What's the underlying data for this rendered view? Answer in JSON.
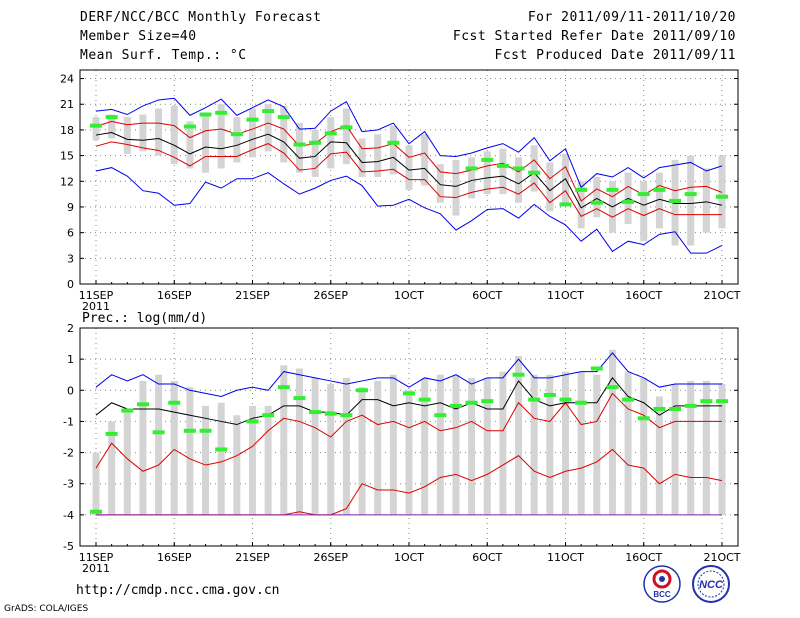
{
  "header": {
    "title": "DERF/NCC/BCC Monthly Forecast",
    "member_size": "Member Size=40",
    "variable": "Mean Surf. Temp.: °C",
    "period": "For 2011/09/11-2011/10/20",
    "refer_date": "Fcst Started Refer Date 2011/09/10",
    "produced_date": "Fcst Produced Date 2011/09/11"
  },
  "footer": {
    "url": "http://cmdp.ncc.cma.gov.cn",
    "credit": "GrADS: COLA/IGES",
    "logo_left": "BCC",
    "logo_right": "NCC"
  },
  "colors": {
    "max_line": "#0000ee",
    "min_line": "#0000ee",
    "mean_line": "#000000",
    "spread_line": "#dd0000",
    "box": "#d4d4d4",
    "marker": "#33ee33"
  },
  "chart_data": [
    {
      "type": "box",
      "title": "Mean Surf. Temp.: °C",
      "ylim": [
        0,
        25
      ],
      "yticks": [
        0,
        3,
        6,
        9,
        12,
        15,
        18,
        21,
        24
      ],
      "xlim": [
        0,
        40
      ],
      "xticks": [
        {
          "x": 0,
          "label": "11SEP",
          "sub": "2011"
        },
        {
          "x": 5,
          "label": "16SEP"
        },
        {
          "x": 10,
          "label": "21SEP"
        },
        {
          "x": 15,
          "label": "26SEP"
        },
        {
          "x": 20,
          "label": "1OCT"
        },
        {
          "x": 25,
          "label": "6OCT"
        },
        {
          "x": 30,
          "label": "11OCT"
        },
        {
          "x": 35,
          "label": "16OCT"
        },
        {
          "x": 40,
          "label": "21OCT"
        }
      ],
      "series": {
        "max": [
          20.2,
          20.4,
          19.8,
          20.8,
          21.5,
          21.7,
          19.7,
          20.6,
          21.6,
          19.7,
          20.6,
          21.5,
          20.7,
          18.1,
          18.2,
          20.2,
          21.3,
          17.8,
          18.0,
          18.8,
          16.4,
          17.8,
          15.0,
          14.9,
          15.3,
          15.9,
          16.4,
          15.4,
          17.1,
          14.4,
          15.8,
          11.3,
          12.9,
          12.5,
          13.6,
          12.4,
          13.6,
          13.9,
          14.2,
          13.2,
          13.8
        ],
        "spread_hi": [
          18.4,
          19.0,
          18.6,
          18.8,
          18.8,
          18.5,
          17.1,
          17.9,
          18.1,
          17.5,
          18.1,
          18.8,
          18.1,
          16.1,
          16.4,
          17.8,
          18.5,
          15.8,
          15.9,
          16.4,
          14.8,
          15.3,
          13.1,
          12.9,
          13.3,
          13.8,
          14.1,
          13.1,
          14.5,
          12.3,
          13.7,
          9.7,
          11.1,
          10.2,
          11.4,
          10.4,
          11.5,
          10.9,
          11.3,
          11.4,
          10.7
        ],
        "mean": [
          17.4,
          17.7,
          16.9,
          16.8,
          17.0,
          16.2,
          15.2,
          16.0,
          15.8,
          16.2,
          16.9,
          17.5,
          16.6,
          14.7,
          14.9,
          16.6,
          16.5,
          14.2,
          14.3,
          14.8,
          13.3,
          13.5,
          11.6,
          11.4,
          12.1,
          12.4,
          12.6,
          11.7,
          13.0,
          10.9,
          12.3,
          8.9,
          10.0,
          9.0,
          10.0,
          9.2,
          9.9,
          9.4,
          9.4,
          9.6,
          9.2
        ],
        "spread_lo": [
          16.1,
          16.6,
          16.3,
          15.9,
          15.6,
          14.8,
          13.8,
          14.9,
          14.9,
          14.9,
          15.7,
          16.4,
          15.3,
          13.3,
          13.5,
          15.2,
          15.4,
          13.1,
          13.2,
          13.4,
          12.2,
          12.2,
          10.2,
          10.1,
          10.7,
          11.1,
          11.3,
          10.5,
          11.8,
          9.5,
          10.9,
          7.9,
          8.8,
          7.8,
          8.8,
          8.0,
          8.8,
          8.1,
          8.1,
          8.1,
          8.1
        ],
        "min": [
          13.2,
          13.6,
          12.6,
          10.9,
          10.6,
          9.2,
          9.4,
          11.9,
          11.2,
          12.3,
          12.3,
          13.0,
          11.7,
          10.5,
          11.2,
          12.1,
          12.6,
          11.5,
          9.1,
          9.2,
          9.9,
          8.9,
          8.2,
          6.3,
          7.4,
          8.7,
          8.8,
          7.7,
          9.3,
          7.9,
          6.9,
          5.0,
          6.4,
          3.8,
          5.0,
          4.6,
          5.8,
          6.1,
          3.6,
          3.6,
          4.5
        ],
        "box_top": [
          19.5,
          19.8,
          19.5,
          19.8,
          20.5,
          20.8,
          19.0,
          20.0,
          21.0,
          19.5,
          20.5,
          21.0,
          20.8,
          18.8,
          18.0,
          19.5,
          20.5,
          17.0,
          17.5,
          18.5,
          16.2,
          17.5,
          14.0,
          14.5,
          14.8,
          15.5,
          15.8,
          14.8,
          16.2,
          14.2,
          15.2,
          12.0,
          12.5,
          12.0,
          13.0,
          12.0,
          13.0,
          14.5,
          15.0,
          13.5,
          15.0
        ],
        "box_bottom": [
          16.8,
          17.0,
          15.2,
          15.5,
          15.0,
          14.0,
          13.5,
          13.0,
          13.5,
          14.2,
          14.8,
          15.5,
          14.2,
          13.0,
          12.5,
          13.5,
          14.0,
          12.5,
          12.5,
          12.8,
          11.0,
          11.5,
          9.5,
          8.0,
          10.0,
          10.5,
          10.5,
          9.5,
          10.8,
          8.5,
          9.5,
          6.5,
          7.8,
          6.0,
          7.0,
          5.0,
          6.5,
          4.5,
          4.5,
          6.0,
          6.5
        ],
        "marker": [
          18.5,
          19.5,
          null,
          null,
          null,
          null,
          18.4,
          19.8,
          20.0,
          17.5,
          19.2,
          20.2,
          19.5,
          16.3,
          16.5,
          17.6,
          18.3,
          null,
          null,
          16.5,
          null,
          null,
          null,
          null,
          13.5,
          14.5,
          13.8,
          13.5,
          13.0,
          null,
          9.3,
          11.0,
          9.5,
          11.0,
          9.6,
          10.5,
          11.0,
          9.7,
          10.5,
          null,
          10.2
        ]
      }
    },
    {
      "type": "box",
      "title": "Prec.: log(mm/d)",
      "ylim": [
        -5,
        2
      ],
      "yticks": [
        -5,
        -4,
        -3,
        -2,
        -1,
        0,
        1,
        2
      ],
      "xlim": [
        0,
        40
      ],
      "xticks": [
        {
          "x": 0,
          "label": "11SEP",
          "sub": "2011"
        },
        {
          "x": 5,
          "label": "16SEP"
        },
        {
          "x": 10,
          "label": "21SEP"
        },
        {
          "x": 15,
          "label": "26SEP"
        },
        {
          "x": 20,
          "label": "1OCT"
        },
        {
          "x": 25,
          "label": "6OCT"
        },
        {
          "x": 30,
          "label": "11OCT"
        },
        {
          "x": 35,
          "label": "16OCT"
        },
        {
          "x": 40,
          "label": "21OCT"
        }
      ],
      "series": {
        "max": [
          0.1,
          0.5,
          0.3,
          0.5,
          0.2,
          0.2,
          0.0,
          -0.1,
          -0.2,
          0.0,
          0.1,
          0.0,
          0.6,
          0.5,
          0.4,
          0.3,
          0.2,
          0.3,
          0.4,
          0.4,
          0.1,
          0.4,
          0.3,
          0.5,
          0.2,
          0.4,
          0.4,
          1.0,
          0.4,
          0.4,
          0.5,
          0.6,
          0.6,
          1.2,
          0.6,
          0.4,
          0.1,
          0.2,
          0.2,
          0.2,
          0.2
        ],
        "spread_hi": [
          -2.5,
          -1.7,
          -2.2,
          -2.6,
          -2.4,
          -1.9,
          -2.2,
          -2.4,
          -2.3,
          -2.1,
          -1.8,
          -1.3,
          -0.9,
          -1.0,
          -1.2,
          -1.5,
          -1.0,
          -0.8,
          -1.1,
          -1.0,
          -1.2,
          -1.0,
          -1.3,
          -1.2,
          -1.0,
          -1.3,
          -1.3,
          -0.4,
          -0.9,
          -1.0,
          -0.4,
          -1.1,
          -1.0,
          -0.1,
          -0.6,
          -0.8,
          -1.2,
          -1.0,
          -1.0,
          -1.0,
          -1.0
        ],
        "mean": [
          -0.8,
          -0.4,
          -0.6,
          -0.6,
          -0.6,
          -0.7,
          -0.8,
          -0.9,
          -1.0,
          -1.1,
          -0.9,
          -0.8,
          -0.5,
          -0.5,
          -0.7,
          -0.7,
          -0.8,
          -0.3,
          -0.3,
          -0.5,
          -0.4,
          -0.5,
          -0.4,
          -0.6,
          -0.4,
          -0.6,
          -0.6,
          0.3,
          -0.3,
          -0.5,
          -0.4,
          -0.4,
          -0.4,
          0.4,
          -0.2,
          -0.4,
          -0.8,
          -0.5,
          -0.5,
          -0.5,
          -0.5
        ],
        "spread_lo": [
          -4.0,
          -4.0,
          -4.0,
          -4.0,
          -4.0,
          -4.0,
          -4.0,
          -4.0,
          -4.0,
          -4.0,
          -4.0,
          -4.0,
          -4.0,
          -3.9,
          -4.0,
          -4.0,
          -3.8,
          -3.0,
          -3.2,
          -3.2,
          -3.3,
          -3.1,
          -2.8,
          -2.7,
          -2.9,
          -2.7,
          -2.4,
          -2.1,
          -2.6,
          -2.8,
          -2.6,
          -2.5,
          -2.3,
          -1.9,
          -2.4,
          -2.5,
          -3.0,
          -2.7,
          -2.8,
          -2.8,
          -2.9
        ],
        "box_top": [
          -2.0,
          -1.0,
          -0.7,
          0.3,
          0.5,
          0.3,
          0.1,
          -0.5,
          -0.4,
          -0.8,
          -0.5,
          -0.5,
          0.8,
          0.7,
          0.4,
          0.2,
          0.4,
          0.1,
          0.3,
          0.5,
          0.0,
          0.4,
          0.5,
          0.5,
          0.4,
          0.4,
          0.6,
          1.1,
          0.5,
          0.5,
          0.6,
          0.6,
          0.5,
          1.3,
          0.6,
          0.4,
          -0.2,
          0.2,
          0.3,
          0.3,
          0.2
        ],
        "box_bottom": [
          -4.0,
          -4.0,
          -4.0,
          -4.0,
          -4.0,
          -4.0,
          -4.0,
          -4.0,
          -4.0,
          -4.0,
          -4.0,
          -4.0,
          -4.0,
          -4.0,
          -4.0,
          -4.0,
          -4.0,
          -4.0,
          -4.0,
          -4.0,
          -4.0,
          -4.0,
          -4.0,
          -4.0,
          -4.0,
          -4.0,
          -4.0,
          -4.0,
          -4.0,
          -4.0,
          -4.0,
          -4.0,
          -4.0,
          -4.0,
          -4.0,
          -4.0,
          -4.0,
          -4.0,
          -4.0,
          -4.0,
          -4.0
        ],
        "marker": [
          -3.9,
          -1.4,
          -0.65,
          -0.45,
          -1.35,
          -0.4,
          -1.3,
          -1.3,
          -1.9,
          null,
          -1.0,
          -0.8,
          0.1,
          -0.25,
          -0.7,
          -0.75,
          -0.8,
          0.0,
          null,
          null,
          -0.1,
          -0.3,
          -0.8,
          -0.5,
          -0.4,
          -0.35,
          null,
          0.5,
          -0.3,
          -0.15,
          -0.3,
          -0.4,
          0.7,
          0.1,
          -0.3,
          -0.9,
          -0.6,
          -0.6,
          -0.5,
          -0.35,
          -0.35
        ]
      }
    }
  ]
}
